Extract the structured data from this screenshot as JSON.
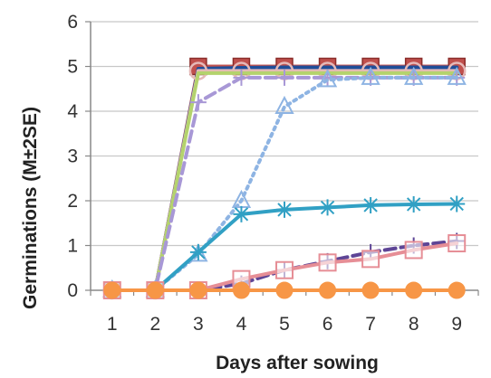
{
  "chart_data": {
    "type": "line",
    "title": "",
    "xlabel": "Days after sowing",
    "ylabel": "Germinations (M±2SE)",
    "x": [
      1,
      2,
      3,
      4,
      5,
      6,
      7,
      8,
      9
    ],
    "ylim": [
      0,
      6
    ],
    "yticks": [
      0,
      1,
      2,
      3,
      4,
      5,
      6
    ],
    "grid": "horizontal",
    "legend": "none",
    "series": [
      {
        "color": "#c0504d",
        "marker": "square",
        "dash": "solid",
        "values": [
          0,
          0,
          5,
          5,
          5,
          5,
          5,
          5,
          5
        ]
      },
      {
        "color": "#1f4e9a",
        "marker": "none",
        "dash": "solid",
        "values": [
          0,
          0,
          4.95,
          4.97,
          4.98,
          4.98,
          4.98,
          4.98,
          4.98
        ]
      },
      {
        "color": "#e6b9b8",
        "marker": "circle-open",
        "dash": "solid",
        "values": [
          0,
          0,
          4.9,
          4.9,
          4.9,
          4.9,
          4.9,
          4.9,
          4.9
        ]
      },
      {
        "color": "#b4d36d",
        "marker": "none",
        "dash": "solid",
        "values": [
          0,
          0,
          4.85,
          4.85,
          4.85,
          4.85,
          4.85,
          4.85,
          4.85
        ]
      },
      {
        "color": "#a898d6",
        "marker": "plus",
        "dash": "dash",
        "values": [
          0,
          0,
          4.2,
          4.75,
          4.75,
          4.75,
          4.75,
          4.75,
          4.75
        ]
      },
      {
        "color": "#8eb4e3",
        "marker": "triangle-open",
        "dash": "dot",
        "values": [
          0,
          0,
          0.8,
          2.0,
          4.1,
          4.7,
          4.75,
          4.75,
          4.75
        ]
      },
      {
        "color": "#31a0c4",
        "marker": "asterisk",
        "dash": "solid",
        "values": [
          0,
          0,
          0.85,
          1.7,
          1.8,
          1.85,
          1.9,
          1.92,
          1.93
        ]
      },
      {
        "color": "#5e4596",
        "marker": "plus",
        "dash": "dash",
        "values": [
          0,
          0,
          0,
          0.15,
          0.45,
          0.65,
          0.85,
          1.0,
          1.1
        ]
      },
      {
        "color": "#e68e96",
        "marker": "square-open",
        "dash": "solid",
        "values": [
          0,
          0,
          0,
          0.25,
          0.45,
          0.62,
          0.7,
          0.9,
          1.05
        ]
      },
      {
        "color": "#f79646",
        "marker": "circle-filled",
        "dash": "solid",
        "values": [
          0,
          0,
          0,
          0,
          0,
          0,
          0,
          0,
          0
        ]
      }
    ]
  }
}
